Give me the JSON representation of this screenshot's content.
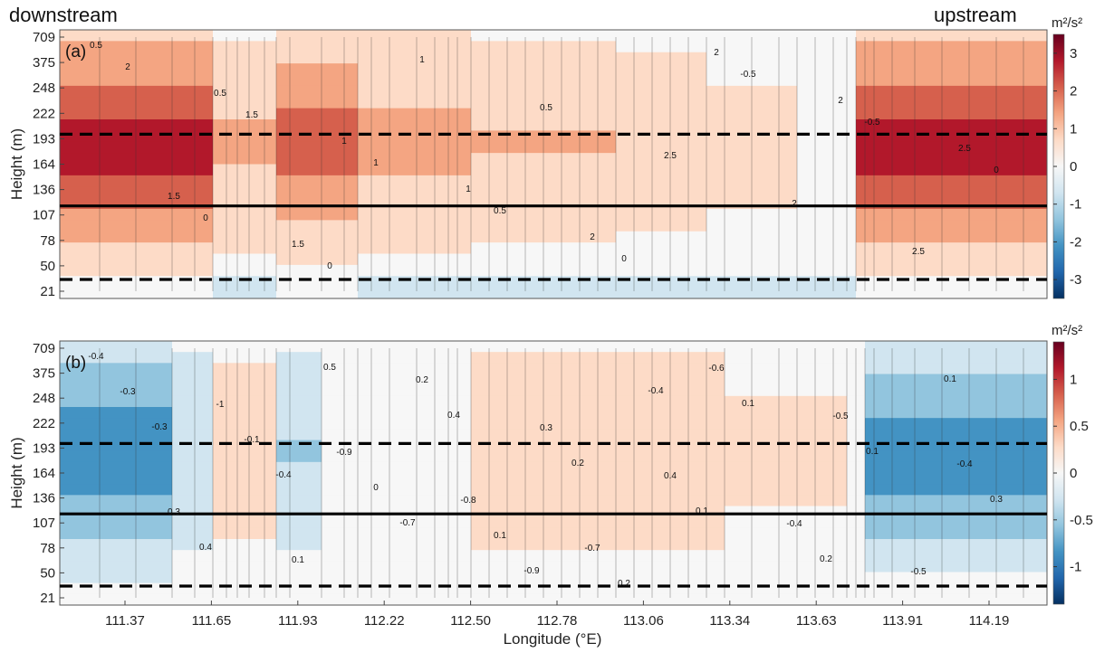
{
  "chart_data": [
    {
      "type": "heatmap",
      "panel_label": "(a)",
      "title_left": "downstream",
      "title_right": "upstream",
      "xlabel": "",
      "ylabel": "Height (m)",
      "y_ticks": [
        "709",
        "375",
        "248",
        "222",
        "193",
        "164",
        "136",
        "107",
        "78",
        "50",
        "21"
      ],
      "x_ticks": [],
      "colorbar": {
        "unit": "m²/s²",
        "ticks": [
          3,
          2,
          1,
          0,
          -1,
          -2,
          -3
        ],
        "range": [
          -3.5,
          3.5
        ],
        "colors": [
          "#053061",
          "#2166ac",
          "#4393c3",
          "#92c5de",
          "#d1e5f0",
          "#f7f7f7",
          "#fddbc7",
          "#f4a582",
          "#d6604d",
          "#b2182b",
          "#67001f"
        ]
      },
      "reference_lines": [
        {
          "height": "193",
          "style": "dashed"
        },
        {
          "height": "107",
          "style": "solid"
        },
        {
          "height": "21",
          "style": "dashed"
        }
      ],
      "contour_labels": [
        "0.5",
        "0.5",
        "1",
        "1",
        "2",
        "2",
        "2",
        "2.5",
        "1.5",
        "1.5",
        "1",
        "0.5",
        "2.5",
        "2",
        "2.5",
        "2",
        "1.5",
        "1",
        "0.5",
        "0",
        "-0.5",
        "-0.5",
        "0",
        "0",
        "0"
      ]
    },
    {
      "type": "heatmap",
      "panel_label": "(b)",
      "xlabel": "Longitude (°E)",
      "ylabel": "Height (m)",
      "y_ticks": [
        "709",
        "375",
        "248",
        "222",
        "193",
        "164",
        "136",
        "107",
        "78",
        "50",
        "21"
      ],
      "x_ticks": [
        "111.37",
        "111.65",
        "111.93",
        "112.22",
        "112.50",
        "112.78",
        "113.06",
        "113.34",
        "113.63",
        "113.91",
        "114.19"
      ],
      "colorbar": {
        "unit": "m²/s²",
        "ticks": [
          1,
          0.5,
          0,
          -0.5,
          -1
        ],
        "range": [
          -1.4,
          1.4
        ],
        "colors": [
          "#053061",
          "#2166ac",
          "#4393c3",
          "#92c5de",
          "#d1e5f0",
          "#f7f7f7",
          "#fddbc7",
          "#f4a582",
          "#d6604d",
          "#b2182b",
          "#67001f"
        ]
      },
      "reference_lines": [
        {
          "height": "193",
          "style": "dashed"
        },
        {
          "height": "107",
          "style": "solid"
        },
        {
          "height": "21",
          "style": "dashed"
        }
      ],
      "contour_labels": [
        "-0.4",
        "-1",
        "-0.9",
        "-0.8",
        "-0.7",
        "-0.6",
        "-0.5",
        "-0.4",
        "0.3",
        "0.1",
        "0.2",
        "0.3",
        "0.4",
        "-0.4",
        "-0.5",
        "-0.3",
        "-0.1",
        "0",
        "0.1",
        "0.2",
        "0.1",
        "0.1",
        "0.3",
        "0.4",
        "0.5",
        "0.4",
        "0.2",
        "0.1",
        "0.2",
        "0.1",
        "-0.3",
        "-0.4",
        "-0.7",
        "-0.9",
        "-0.4"
      ]
    }
  ]
}
